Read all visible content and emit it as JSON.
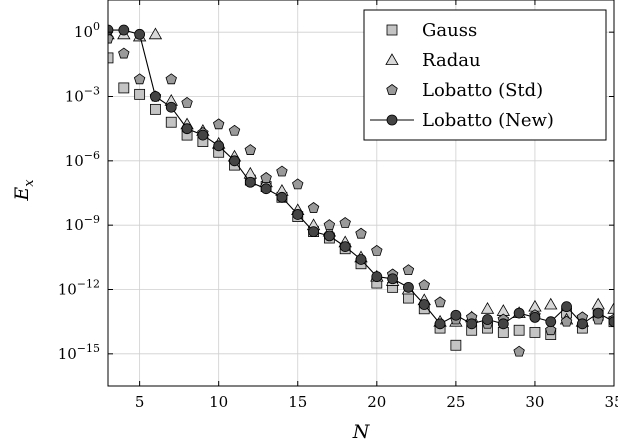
{
  "chart_data": {
    "type": "scatter",
    "xlabel": "N",
    "ylabel_base": "E",
    "ylabel_sub": "x",
    "xlim": [
      3,
      35
    ],
    "ylim_log10": [
      -16.5,
      1.5
    ],
    "y_scale": "log",
    "grid": true,
    "legend_position": "top-right",
    "x_ticks": [
      5,
      10,
      15,
      20,
      25,
      30,
      35
    ],
    "y_ticks": [
      {
        "base": "10",
        "exp": "0",
        "value": 0
      },
      {
        "base": "10",
        "exp": "−3",
        "value": -3
      },
      {
        "base": "10",
        "exp": "−6",
        "value": -6
      },
      {
        "base": "10",
        "exp": "−9",
        "value": -9
      },
      {
        "base": "10",
        "exp": "−12",
        "value": -12
      },
      {
        "base": "10",
        "exp": "−15",
        "value": -15
      }
    ],
    "series": [
      {
        "name": "Gauss",
        "marker": "square",
        "fill": "#c4c4c4",
        "x": [
          3,
          4,
          5,
          6,
          7,
          8,
          9,
          10,
          11,
          12,
          13,
          14,
          15,
          16,
          17,
          18,
          19,
          20,
          21,
          22,
          23,
          24,
          25,
          26,
          27,
          28,
          29,
          30,
          31,
          32,
          33,
          34,
          35
        ],
        "log10_y": [
          -1.2,
          -2.6,
          -2.9,
          -3.6,
          -4.2,
          -4.8,
          -5.1,
          -5.6,
          -6.2,
          -6.9,
          -7.2,
          -7.7,
          -8.6,
          -9.3,
          -9.6,
          -10.1,
          -10.8,
          -11.7,
          -11.9,
          -12.4,
          -12.9,
          -13.8,
          -14.6,
          -13.9,
          -13.8,
          -14.0,
          -13.9,
          -14.0,
          -14.1,
          -13.1,
          -13.8,
          -13.2,
          -13.5
        ]
      },
      {
        "name": "Radau",
        "marker": "triangle",
        "fill": "#d8d8d8",
        "x": [
          3,
          4,
          5,
          6,
          7,
          8,
          9,
          10,
          11,
          12,
          13,
          14,
          15,
          16,
          17,
          18,
          19,
          20,
          21,
          22,
          23,
          24,
          25,
          26,
          27,
          28,
          29,
          30,
          31,
          32,
          33,
          34,
          35
        ],
        "log10_y": [
          -0.1,
          -0.1,
          -0.2,
          -0.1,
          -3.2,
          -4.3,
          -4.6,
          -5.2,
          -5.8,
          -6.6,
          -7.0,
          -7.4,
          -8.3,
          -9.0,
          -9.3,
          -9.8,
          -10.5,
          -11.4,
          -11.6,
          -12.0,
          -12.5,
          -13.5,
          -13.5,
          -13.3,
          -12.9,
          -13.0,
          -13.1,
          -12.8,
          -12.7,
          -13.4,
          -13.5,
          -12.7,
          -12.9
        ]
      },
      {
        "name": "Lobatto (Std)",
        "marker": "pentagon",
        "fill": "#9a9a9a",
        "x": [
          3,
          4,
          5,
          6,
          7,
          8,
          9,
          10,
          11,
          12,
          13,
          14,
          15,
          16,
          17,
          18,
          19,
          20,
          21,
          22,
          23,
          24,
          25,
          26,
          27,
          28,
          29,
          30,
          31,
          32,
          33,
          34,
          35
        ],
        "log10_y": [
          -0.3,
          -1.0,
          -2.2,
          -3.0,
          -2.2,
          -3.3,
          -4.7,
          -4.3,
          -4.6,
          -5.5,
          -6.8,
          -6.5,
          -7.1,
          -8.2,
          -9.0,
          -8.9,
          -9.4,
          -10.2,
          -11.3,
          -11.1,
          -11.8,
          -12.6,
          -13.4,
          -13.3,
          -13.6,
          -13.4,
          -14.9,
          -13.2,
          -13.9,
          -13.5,
          -13.3,
          -13.4,
          -13.4
        ]
      },
      {
        "name": "Lobatto (New)",
        "marker": "circle",
        "fill": "#444444",
        "line": true,
        "x": [
          3,
          4,
          5,
          6,
          7,
          8,
          9,
          10,
          11,
          12,
          13,
          14,
          15,
          16,
          17,
          18,
          19,
          20,
          21,
          22,
          23,
          24,
          25,
          26,
          27,
          28,
          29,
          30,
          31,
          32,
          33,
          34,
          35
        ],
        "log10_y": [
          0.1,
          0.1,
          -0.1,
          -3.0,
          -3.5,
          -4.5,
          -4.8,
          -5.3,
          -6.0,
          -7.0,
          -7.3,
          -7.7,
          -8.5,
          -9.3,
          -9.5,
          -10.0,
          -10.6,
          -11.4,
          -11.5,
          -11.9,
          -12.7,
          -13.6,
          -13.2,
          -13.6,
          -13.4,
          -13.6,
          -13.1,
          -13.3,
          -13.5,
          -12.8,
          -13.6,
          -13.1,
          -13.5
        ]
      }
    ]
  }
}
